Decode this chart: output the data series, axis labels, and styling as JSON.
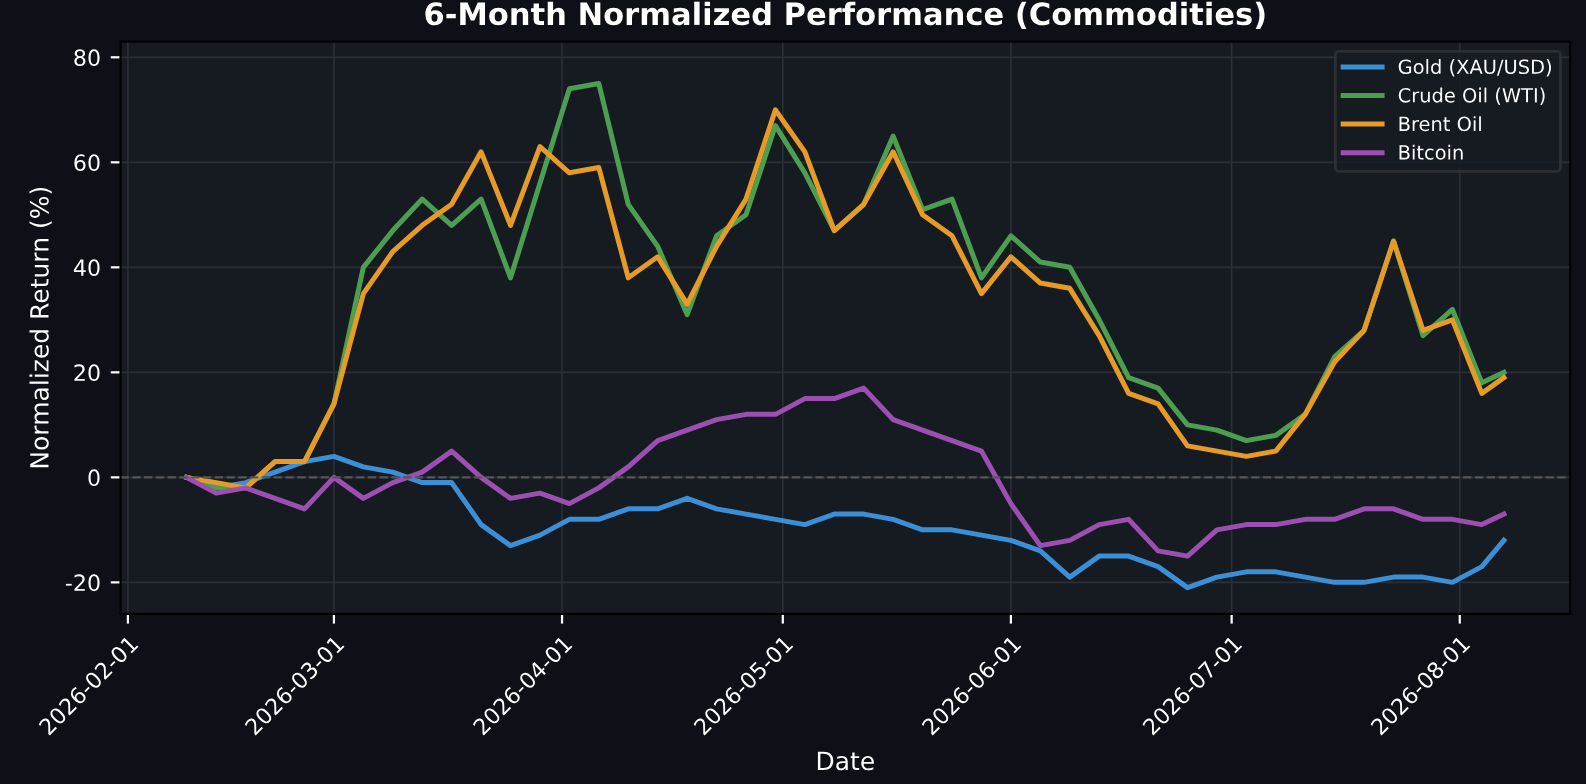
{
  "chart_data": {
    "type": "line",
    "title": "6-Month Normalized Performance (Commodities)",
    "xlabel": "Date",
    "ylabel": "Normalized Return (%)",
    "x": [
      "2026-02-09",
      "2026-02-13",
      "2026-02-17",
      "2026-02-21",
      "2026-02-25",
      "2026-03-01",
      "2026-03-05",
      "2026-03-09",
      "2026-03-13",
      "2026-03-17",
      "2026-03-21",
      "2026-03-25",
      "2026-03-29",
      "2026-04-02",
      "2026-04-06",
      "2026-04-10",
      "2026-04-14",
      "2026-04-18",
      "2026-04-22",
      "2026-04-26",
      "2026-04-30",
      "2026-05-04",
      "2026-05-08",
      "2026-05-12",
      "2026-05-16",
      "2026-05-20",
      "2026-05-24",
      "2026-05-28",
      "2026-06-01",
      "2026-06-05",
      "2026-06-09",
      "2026-06-13",
      "2026-06-17",
      "2026-06-21",
      "2026-06-25",
      "2026-06-29",
      "2026-07-03",
      "2026-07-07",
      "2026-07-11",
      "2026-07-15",
      "2026-07-19",
      "2026-07-23",
      "2026-07-27",
      "2026-07-31",
      "2026-08-04",
      "2026-08-07"
    ],
    "series": [
      {
        "name": "Gold (XAU/USD)",
        "color": "#3a8fd6",
        "values": [
          0,
          -2,
          -1,
          1,
          3,
          4,
          2,
          1,
          -1,
          -1,
          -9,
          -13,
          -11,
          -8,
          -8,
          -6,
          -6,
          -4,
          -6,
          -7,
          -8,
          -9,
          -7,
          -7,
          -8,
          -10,
          -10,
          -11,
          -12,
          -14,
          -19,
          -15,
          -15,
          -17,
          -21,
          -19,
          -18,
          -18,
          -19,
          -20,
          -20,
          -19,
          -19,
          -20,
          -17,
          -12
        ]
      },
      {
        "name": "Crude Oil (WTI)",
        "color": "#4c9f50",
        "values": [
          0,
          -2,
          -2,
          3,
          3,
          14,
          40,
          47,
          53,
          48,
          53,
          38,
          56,
          74,
          75,
          52,
          44,
          31,
          46,
          50,
          67,
          58,
          47,
          52,
          65,
          51,
          53,
          38,
          46,
          41,
          40,
          30,
          19,
          17,
          10,
          9,
          7,
          8,
          12,
          23,
          28,
          45,
          27,
          32,
          18,
          20
        ]
      },
      {
        "name": "Brent Oil",
        "color": "#e69a28",
        "values": [
          0,
          -1,
          -2,
          3,
          3,
          14,
          35,
          43,
          48,
          52,
          62,
          48,
          63,
          58,
          59,
          38,
          42,
          33,
          44,
          53,
          70,
          62,
          47,
          52,
          62,
          50,
          46,
          35,
          42,
          37,
          36,
          27,
          16,
          14,
          6,
          5,
          4,
          5,
          12,
          22,
          28,
          45,
          28,
          30,
          16,
          19
        ]
      },
      {
        "name": "Bitcoin",
        "color": "#9b4fb0",
        "values": [
          0,
          -3,
          -2,
          -4,
          -6,
          0,
          -4,
          -1,
          1,
          5,
          0,
          -4,
          -3,
          -5,
          -2,
          2,
          7,
          9,
          11,
          12,
          12,
          15,
          15,
          17,
          11,
          9,
          7,
          5,
          -5,
          -13,
          -12,
          -9,
          -8,
          -14,
          -15,
          -10,
          -9,
          -9,
          -8,
          -8,
          -6,
          -6,
          -8,
          -8,
          -9,
          -7
        ]
      }
    ],
    "xlim": [
      "2026-01-31",
      "2026-08-16"
    ],
    "ylim": [
      -26,
      83
    ],
    "xticks": [
      "2026-02-01",
      "2026-03-01",
      "2026-04-01",
      "2026-05-01",
      "2026-06-01",
      "2026-07-01",
      "2026-08-01"
    ],
    "yticks": [
      -20,
      0,
      20,
      40,
      60,
      80
    ],
    "ref_lines": [
      {
        "axis": "y",
        "value": 0,
        "color": "#555555",
        "line_style": "dashed"
      }
    ],
    "grid": true,
    "legend": "top right",
    "marker": "none",
    "line_style": "solid"
  }
}
